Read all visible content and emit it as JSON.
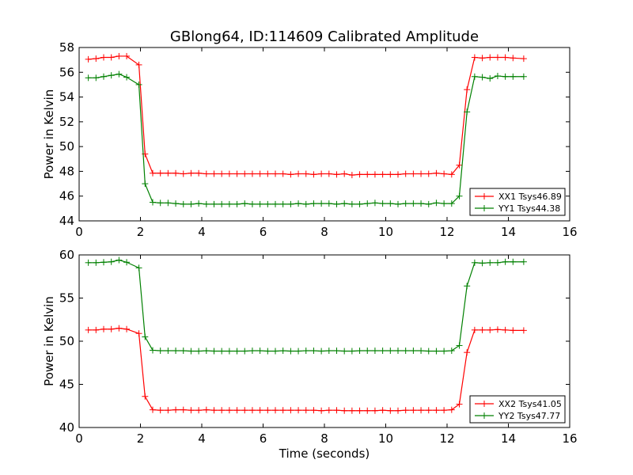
{
  "title": "GBlong64, ID:114609 Calibrated Amplitude",
  "xlabel": "Time (seconds)",
  "chart_data": [
    {
      "type": "line",
      "ylabel": "Power in Kelvin",
      "xlim": [
        0,
        16
      ],
      "ylim": [
        44,
        58
      ],
      "xticks": [
        0,
        2,
        4,
        6,
        8,
        10,
        12,
        14,
        16
      ],
      "yticks": [
        44,
        46,
        48,
        50,
        52,
        54,
        56,
        58
      ],
      "legend_loc": "lower-right",
      "series": [
        {
          "name": "XX1 Tsys46.89",
          "color": "#ff0000",
          "x": [
            0.3,
            0.55,
            0.8,
            1.05,
            1.3,
            1.55,
            1.95,
            2.15,
            2.4,
            2.65,
            2.9,
            3.15,
            3.4,
            3.65,
            3.9,
            4.15,
            4.4,
            4.65,
            4.9,
            5.15,
            5.4,
            5.65,
            5.9,
            6.15,
            6.4,
            6.65,
            6.9,
            7.15,
            7.4,
            7.65,
            7.9,
            8.15,
            8.4,
            8.65,
            8.9,
            9.15,
            9.4,
            9.65,
            9.9,
            10.15,
            10.4,
            10.65,
            10.9,
            11.15,
            11.4,
            11.65,
            11.9,
            12.15,
            12.4,
            12.65,
            12.9,
            13.15,
            13.4,
            13.65,
            13.9,
            14.15,
            14.5
          ],
          "y": [
            57.05,
            57.1,
            57.2,
            57.2,
            57.3,
            57.3,
            56.6,
            49.4,
            47.85,
            47.85,
            47.85,
            47.85,
            47.8,
            47.85,
            47.85,
            47.8,
            47.8,
            47.8,
            47.8,
            47.8,
            47.8,
            47.8,
            47.8,
            47.8,
            47.8,
            47.8,
            47.75,
            47.8,
            47.8,
            47.75,
            47.8,
            47.8,
            47.75,
            47.8,
            47.7,
            47.75,
            47.75,
            47.75,
            47.75,
            47.75,
            47.75,
            47.8,
            47.8,
            47.8,
            47.8,
            47.85,
            47.8,
            47.75,
            48.5,
            54.6,
            57.2,
            57.15,
            57.2,
            57.2,
            57.2,
            57.15,
            57.1
          ]
        },
        {
          "name": "YY1 Tsys44.38",
          "color": "#008000",
          "x": [
            0.3,
            0.55,
            0.8,
            1.05,
            1.3,
            1.55,
            1.95,
            2.15,
            2.4,
            2.65,
            2.9,
            3.15,
            3.4,
            3.65,
            3.9,
            4.15,
            4.4,
            4.65,
            4.9,
            5.15,
            5.4,
            5.65,
            5.9,
            6.15,
            6.4,
            6.65,
            6.9,
            7.15,
            7.4,
            7.65,
            7.9,
            8.15,
            8.4,
            8.65,
            8.9,
            9.15,
            9.4,
            9.65,
            9.9,
            10.15,
            10.4,
            10.65,
            10.9,
            11.15,
            11.4,
            11.65,
            11.9,
            12.15,
            12.4,
            12.65,
            12.9,
            13.15,
            13.4,
            13.65,
            13.9,
            14.15,
            14.5
          ],
          "y": [
            55.55,
            55.55,
            55.65,
            55.75,
            55.85,
            55.6,
            55.0,
            47.0,
            45.5,
            45.45,
            45.45,
            45.4,
            45.35,
            45.35,
            45.4,
            45.35,
            45.35,
            45.35,
            45.35,
            45.35,
            45.4,
            45.35,
            45.35,
            45.35,
            45.35,
            45.35,
            45.35,
            45.4,
            45.35,
            45.4,
            45.4,
            45.4,
            45.35,
            45.4,
            45.35,
            45.35,
            45.4,
            45.45,
            45.4,
            45.4,
            45.35,
            45.4,
            45.4,
            45.4,
            45.35,
            45.45,
            45.4,
            45.4,
            46.0,
            52.8,
            55.65,
            55.6,
            55.5,
            55.7,
            55.65,
            55.65,
            55.65
          ]
        }
      ]
    },
    {
      "type": "line",
      "ylabel": "Power in Kelvin",
      "xlim": [
        0,
        16
      ],
      "ylim": [
        40,
        60
      ],
      "xticks": [
        0,
        2,
        4,
        6,
        8,
        10,
        12,
        14,
        16
      ],
      "yticks": [
        40,
        45,
        50,
        55,
        60
      ],
      "legend_loc": "lower-right",
      "series": [
        {
          "name": "XX2 Tsys41.05",
          "color": "#ff0000",
          "x": [
            0.3,
            0.55,
            0.8,
            1.05,
            1.3,
            1.55,
            1.95,
            2.15,
            2.4,
            2.65,
            2.9,
            3.15,
            3.4,
            3.65,
            3.9,
            4.15,
            4.4,
            4.65,
            4.9,
            5.15,
            5.4,
            5.65,
            5.9,
            6.15,
            6.4,
            6.65,
            6.9,
            7.15,
            7.4,
            7.65,
            7.9,
            8.15,
            8.4,
            8.65,
            8.9,
            9.15,
            9.4,
            9.65,
            9.9,
            10.15,
            10.4,
            10.65,
            10.9,
            11.15,
            11.4,
            11.65,
            11.9,
            12.15,
            12.4,
            12.65,
            12.9,
            13.15,
            13.4,
            13.65,
            13.9,
            14.15,
            14.5
          ],
          "y": [
            51.3,
            51.3,
            51.4,
            51.4,
            51.5,
            51.4,
            50.9,
            43.6,
            42.05,
            42.0,
            42.0,
            42.05,
            42.05,
            42.0,
            42.0,
            42.05,
            42.0,
            42.0,
            42.0,
            42.0,
            42.0,
            42.0,
            42.0,
            42.0,
            42.0,
            42.0,
            42.0,
            42.0,
            42.0,
            42.0,
            41.95,
            42.0,
            42.0,
            41.95,
            41.95,
            41.95,
            41.95,
            41.95,
            42.0,
            41.95,
            41.95,
            42.0,
            42.0,
            42.0,
            42.0,
            42.0,
            42.0,
            42.05,
            42.7,
            48.7,
            51.3,
            51.3,
            51.3,
            51.35,
            51.3,
            51.25,
            51.25
          ]
        },
        {
          "name": "YY2 Tsys47.77",
          "color": "#008000",
          "x": [
            0.3,
            0.55,
            0.8,
            1.05,
            1.3,
            1.55,
            1.95,
            2.15,
            2.4,
            2.65,
            2.9,
            3.15,
            3.4,
            3.65,
            3.9,
            4.15,
            4.4,
            4.65,
            4.9,
            5.15,
            5.4,
            5.65,
            5.9,
            6.15,
            6.4,
            6.65,
            6.9,
            7.15,
            7.4,
            7.65,
            7.9,
            8.15,
            8.4,
            8.65,
            8.9,
            9.15,
            9.4,
            9.65,
            9.9,
            10.15,
            10.4,
            10.65,
            10.9,
            11.15,
            11.4,
            11.65,
            11.9,
            12.15,
            12.4,
            12.65,
            12.9,
            13.15,
            13.4,
            13.65,
            13.9,
            14.15,
            14.5
          ],
          "y": [
            59.1,
            59.1,
            59.15,
            59.2,
            59.4,
            59.15,
            58.5,
            50.5,
            48.95,
            48.9,
            48.9,
            48.9,
            48.9,
            48.85,
            48.85,
            48.9,
            48.85,
            48.85,
            48.85,
            48.85,
            48.85,
            48.9,
            48.9,
            48.85,
            48.85,
            48.9,
            48.85,
            48.85,
            48.9,
            48.9,
            48.85,
            48.9,
            48.9,
            48.85,
            48.85,
            48.9,
            48.9,
            48.9,
            48.9,
            48.9,
            48.9,
            48.9,
            48.9,
            48.9,
            48.85,
            48.85,
            48.85,
            48.9,
            49.5,
            56.4,
            59.1,
            59.05,
            59.1,
            59.1,
            59.2,
            59.2,
            59.2
          ]
        }
      ]
    }
  ]
}
